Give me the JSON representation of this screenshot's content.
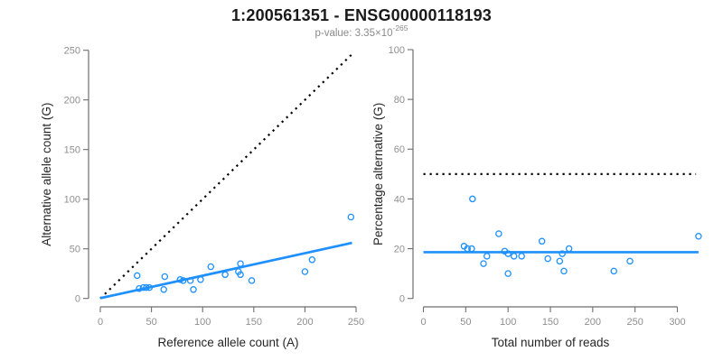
{
  "header": {
    "title": "1:200561351 - ENSG00000118193",
    "subtitle_prefix": "p-value: 3.35×10",
    "subtitle_exponent": "-265"
  },
  "colors": {
    "accent_blue": "#1E90FF",
    "dotted_line": "#000000",
    "axis_line": "#6e6e6e",
    "tick_label": "#8f8f8f",
    "axis_title": "#262626",
    "title_text": "#1a1a1a",
    "subtitle_text": "#8a8a8a"
  },
  "chart_data": [
    {
      "type": "scatter",
      "panel": "left",
      "xlabel": "Reference allele count (A)",
      "ylabel": "Alternative allele count (G)",
      "xlim": [
        0,
        250
      ],
      "ylim": [
        0,
        250
      ],
      "xticks": [
        0,
        50,
        100,
        150,
        200,
        250
      ],
      "yticks": [
        0,
        50,
        100,
        150,
        200,
        250
      ],
      "grid": false,
      "legend": "none",
      "points": [
        [
          36,
          23
        ],
        [
          38,
          10
        ],
        [
          42,
          11
        ],
        [
          45,
          11
        ],
        [
          48,
          11
        ],
        [
          62,
          9
        ],
        [
          63,
          22
        ],
        [
          78,
          19
        ],
        [
          81,
          18
        ],
        [
          88,
          18
        ],
        [
          91,
          9
        ],
        [
          98,
          19
        ],
        [
          108,
          32
        ],
        [
          122,
          24
        ],
        [
          135,
          27
        ],
        [
          137,
          35
        ],
        [
          137,
          24
        ],
        [
          148,
          18
        ],
        [
          200,
          27
        ],
        [
          207,
          39
        ],
        [
          245,
          82
        ]
      ],
      "fit_line": {
        "style": "solid",
        "from": [
          0,
          0.3
        ],
        "to": [
          246,
          56
        ]
      },
      "reference_line": {
        "style": "dotted",
        "from": [
          0,
          0
        ],
        "to": [
          247,
          247
        ],
        "meaning": "identity y=x"
      }
    },
    {
      "type": "scatter",
      "panel": "right",
      "xlabel": "Total number of reads",
      "ylabel": "Percentage alternative (G)",
      "xlim": [
        0,
        300
      ],
      "ylim": [
        0,
        100
      ],
      "xticks": [
        0,
        50,
        100,
        150,
        200,
        250,
        300
      ],
      "yticks": [
        0,
        20,
        40,
        60,
        80,
        100
      ],
      "grid": false,
      "legend": "none",
      "points": [
        [
          48,
          21
        ],
        [
          52,
          20
        ],
        [
          57,
          20
        ],
        [
          58,
          40
        ],
        [
          71,
          14
        ],
        [
          75,
          17
        ],
        [
          89,
          26
        ],
        [
          96,
          19
        ],
        [
          100,
          10
        ],
        [
          100,
          18
        ],
        [
          107,
          17
        ],
        [
          116,
          17
        ],
        [
          140,
          23
        ],
        [
          147,
          16
        ],
        [
          161,
          15
        ],
        [
          164,
          18
        ],
        [
          166,
          11
        ],
        [
          172,
          20
        ],
        [
          225,
          11
        ],
        [
          244,
          15
        ],
        [
          325,
          25
        ]
      ],
      "fit_line": {
        "style": "solid",
        "from": [
          0,
          18.6
        ],
        "to": [
          325,
          18.6
        ]
      },
      "reference_line": {
        "style": "dotted",
        "from": [
          0,
          50
        ],
        "to": [
          322,
          50
        ],
        "meaning": "50% line"
      }
    }
  ]
}
